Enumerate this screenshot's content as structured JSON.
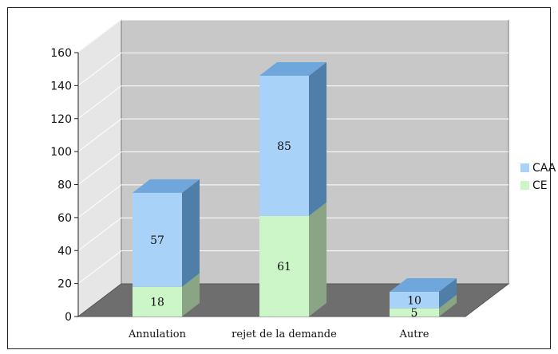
{
  "chart_data": {
    "type": "bar",
    "stacked": true,
    "three_d": true,
    "title": "",
    "xlabel": "",
    "ylabel": "",
    "categories": [
      "Annulation",
      "rejet de la demande",
      "Autre"
    ],
    "series": [
      {
        "name": "CE",
        "values": [
          18,
          61,
          5
        ],
        "color": "#ccf5c8",
        "side_color": "#8aa583",
        "top_color": "#a8d8a0"
      },
      {
        "name": "CAA",
        "values": [
          57,
          85,
          10
        ],
        "color": "#a8d2f8",
        "side_color": "#4f7ea8",
        "top_color": "#6fa7dc"
      }
    ],
    "ylim": [
      0,
      160
    ],
    "yticks": [
      0,
      20,
      40,
      60,
      80,
      100,
      120,
      140,
      160
    ],
    "grid": true,
    "legend_position": "right"
  }
}
